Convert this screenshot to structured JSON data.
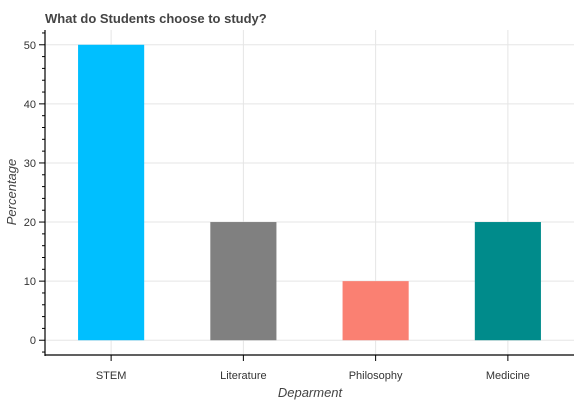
{
  "chart_data": {
    "type": "bar",
    "title": "What do Students choose to study?",
    "xlabel": "Deparment",
    "ylabel": "Percentage",
    "categories": [
      "STEM",
      "Literature",
      "Philosophy",
      "Medicine"
    ],
    "values": [
      50,
      20,
      10,
      20
    ],
    "colors": [
      "#00bfff",
      "#808080",
      "#fa8072",
      "#008b8b"
    ],
    "ylim": [
      -2.5,
      52.5
    ],
    "yticks": [
      0,
      10,
      20,
      30,
      40,
      50
    ],
    "grid": true,
    "legend": "none"
  }
}
